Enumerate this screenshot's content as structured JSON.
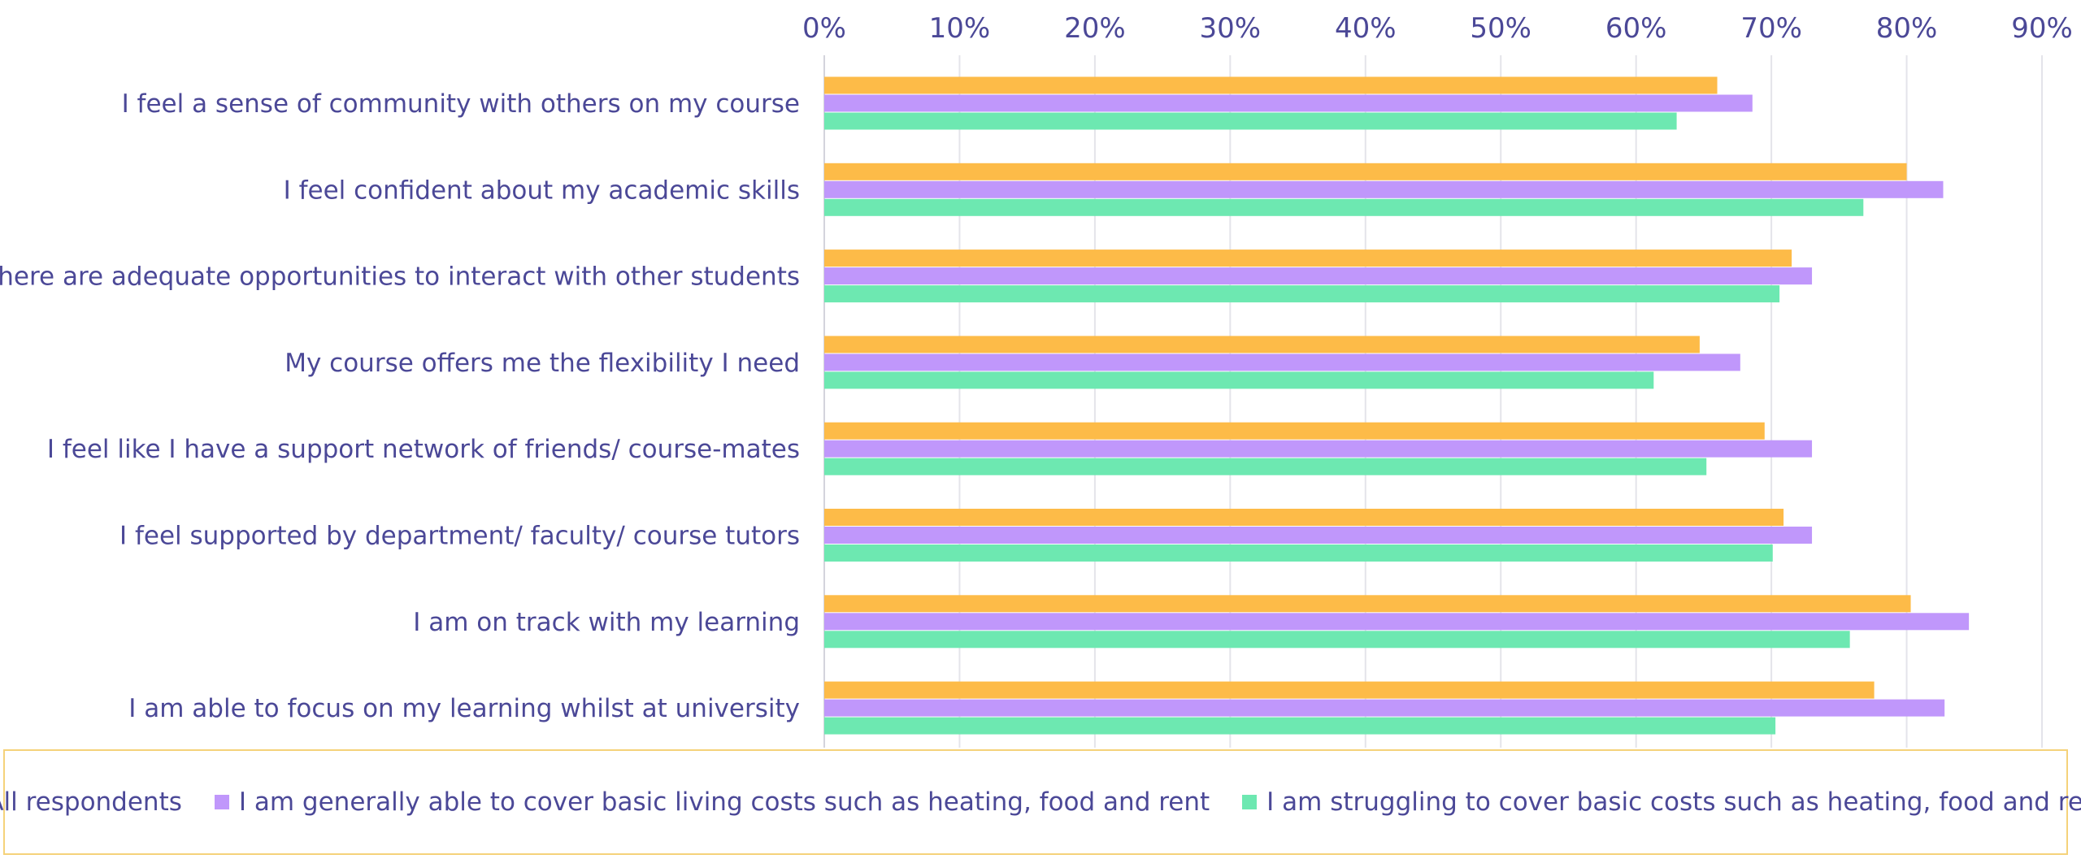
{
  "colors": {
    "all_respondents": "#fdbb48",
    "can_cover": "#c097fb",
    "struggling": "#6de8b1",
    "text": "#4b4897"
  },
  "chart_data": {
    "type": "bar",
    "orientation": "horizontal",
    "title": "",
    "xlabel": "",
    "ylabel": "",
    "xlim": [
      0,
      90
    ],
    "ticks": [
      0,
      10,
      20,
      30,
      40,
      50,
      60,
      70,
      80,
      90
    ],
    "tick_labels": [
      "0%",
      "10%",
      "20%",
      "30%",
      "40%",
      "50%",
      "60%",
      "70%",
      "80%",
      "90%"
    ],
    "axis_position": "top",
    "grid": true,
    "legend_position": "bottom",
    "categories": [
      "I feel a sense of community with others on my course",
      "I feel confident about my academic skills",
      "There are adequate opportunities to interact with other students",
      "My course offers me the flexibility I need",
      "I feel like I have a support network of friends/ course-mates",
      "I feel supported by department/ faculty/ course tutors",
      "I am on track with my learning",
      "I am able to focus on my learning whilst at university"
    ],
    "series": [
      {
        "name": "All respondents",
        "color": "#fdbb48",
        "values": [
          66,
          80,
          71.5,
          64.7,
          69.5,
          70.9,
          80.3,
          77.6
        ]
      },
      {
        "name": "I am generally able to cover basic living costs such as heating, food and rent",
        "color": "#c097fb",
        "values": [
          68.6,
          82.7,
          73,
          67.7,
          73,
          73,
          84.6,
          82.8
        ]
      },
      {
        "name": "I am struggling to cover basic costs such as heating, food and rent",
        "color": "#6de8b1",
        "values": [
          63,
          76.8,
          70.6,
          61.3,
          65.2,
          70.1,
          75.8,
          70.3
        ]
      }
    ]
  }
}
